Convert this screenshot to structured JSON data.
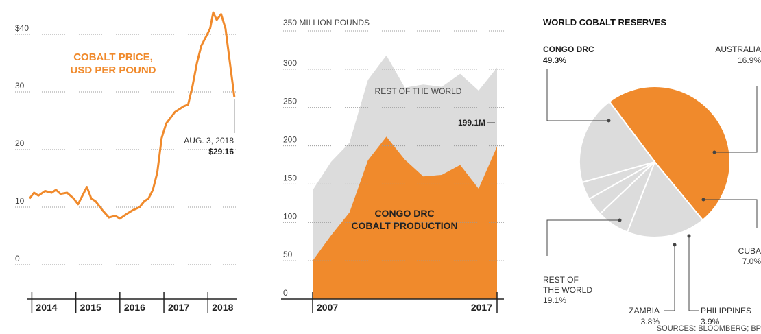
{
  "colors": {
    "orange": "#f08a2c",
    "gray": "#dcdcdc",
    "grid": "#999999"
  },
  "chart_data": [
    {
      "type": "line",
      "y_ticks": [
        "$40",
        "30",
        "20",
        "10",
        "0"
      ],
      "y_tick_values": [
        40,
        30,
        20,
        10,
        0
      ],
      "ylim": [
        0,
        45
      ],
      "xlim": [
        2013.9,
        2018.65
      ],
      "years": [
        "2014",
        "2015",
        "2016",
        "2017",
        "2018"
      ],
      "title_lines": [
        "COBALT PRICE,",
        "USD PER POUND"
      ],
      "annotation": {
        "date": "AUG. 3, 2018",
        "value": "$29.16"
      },
      "series": [
        {
          "x": [
            2013.95,
            2014.05,
            2014.15,
            2014.3,
            2014.45,
            2014.55,
            2014.65,
            2014.8,
            2014.95,
            2015.05,
            2015.25,
            2015.35,
            2015.45,
            2015.6,
            2015.75,
            2015.9,
            2016.0,
            2016.15,
            2016.3,
            2016.45,
            2016.55,
            2016.65,
            2016.75,
            2016.85,
            2016.95,
            2017.05,
            2017.15,
            2017.25,
            2017.35,
            2017.45,
            2017.55,
            2017.65,
            2017.75,
            2017.85,
            2017.95,
            2018.05,
            2018.12,
            2018.2,
            2018.3,
            2018.4,
            2018.5,
            2018.6
          ],
          "y": [
            11.5,
            12.5,
            12.0,
            12.8,
            12.5,
            13.0,
            12.3,
            12.5,
            11.5,
            10.5,
            13.5,
            11.5,
            11.0,
            9.5,
            8.2,
            8.5,
            8.0,
            8.8,
            9.5,
            10.0,
            11.0,
            11.5,
            13.0,
            16.0,
            22.0,
            24.5,
            25.5,
            26.5,
            27.0,
            27.5,
            27.8,
            31.0,
            35.0,
            38.0,
            39.5,
            41.0,
            43.8,
            42.5,
            43.5,
            41.0,
            35.0,
            29.16
          ]
        }
      ]
    },
    {
      "type": "area",
      "ylabel": "350 MILLION POUNDS",
      "y_ticks": [
        "300",
        "250",
        "200",
        "150",
        "100",
        "50",
        "0"
      ],
      "y_tick_values": [
        300,
        250,
        200,
        150,
        100,
        50,
        0
      ],
      "ylim": [
        0,
        350
      ],
      "x_labels": [
        "2007",
        "2017"
      ],
      "x": [
        2007,
        2008,
        2009,
        2010,
        2011,
        2012,
        2013,
        2014,
        2015,
        2016,
        2017
      ],
      "series": [
        {
          "name": "CONGO DRC COBALT PRODUCTION",
          "values": [
            50,
            83,
            113,
            181,
            212,
            182,
            160,
            162,
            175,
            144,
            199.1
          ]
        },
        {
          "name": "REST OF THE WORLD",
          "values": [
            92,
            96,
            91,
            105,
            106,
            94,
            120,
            115,
            119,
            128,
            103
          ]
        }
      ],
      "congo_label_lines": [
        "CONGO DRC",
        "COBALT PRODUCTION"
      ],
      "rest_label": "REST OF THE WORLD",
      "end_label": "199.1M"
    },
    {
      "type": "pie",
      "title": "WORLD COBALT RESERVES",
      "slices": [
        {
          "name": "CONGO DRC",
          "value": 49.3,
          "pct": "49.3%"
        },
        {
          "name": "AUSTRALIA",
          "value": 16.9,
          "pct": "16.9%"
        },
        {
          "name": "CUBA",
          "value": 7.0,
          "pct": "7.0%"
        },
        {
          "name": "PHILIPPINES",
          "value": 3.9,
          "pct": "3.9%"
        },
        {
          "name": "ZAMBIA",
          "value": 3.8,
          "pct": "3.8%"
        },
        {
          "name": "REST OF THE WORLD",
          "value": 19.1,
          "pct": "19.1%"
        }
      ],
      "rest_label_lines": [
        "REST OF",
        "THE WORLD",
        "19.1%"
      ],
      "source": "SOURCES: BLOOMBERG; BP"
    }
  ]
}
